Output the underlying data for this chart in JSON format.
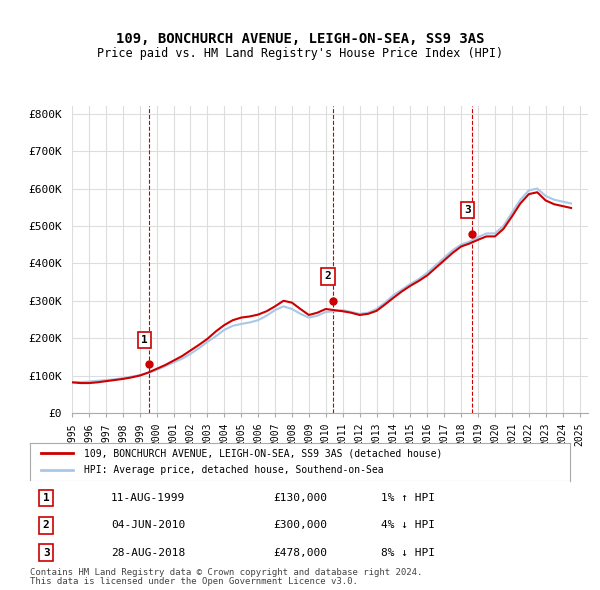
{
  "title": "109, BONCHURCH AVENUE, LEIGH-ON-SEA, SS9 3AS",
  "subtitle": "Price paid vs. HM Land Registry's House Price Index (HPI)",
  "legend_line1": "109, BONCHURCH AVENUE, LEIGH-ON-SEA, SS9 3AS (detached house)",
  "legend_line2": "HPI: Average price, detached house, Southend-on-Sea",
  "footer1": "Contains HM Land Registry data © Crown copyright and database right 2024.",
  "footer2": "This data is licensed under the Open Government Licence v3.0.",
  "sale_labels": [
    "1",
    "2",
    "3"
  ],
  "sale_dates": [
    "11-AUG-1999",
    "04-JUN-2010",
    "28-AUG-2018"
  ],
  "sale_prices": [
    "£130,000",
    "£300,000",
    "£478,000"
  ],
  "sale_hpi": [
    "1% ↑ HPI",
    "4% ↓ HPI",
    "8% ↓ HPI"
  ],
  "hpi_color": "#a8c8e8",
  "price_color": "#cc0000",
  "label_border_color": "#cc0000",
  "grid_color": "#dddddd",
  "background_color": "#ffffff",
  "ylim": [
    0,
    820000
  ],
  "yticks": [
    0,
    100000,
    200000,
    300000,
    400000,
    500000,
    600000,
    700000,
    800000
  ],
  "ytick_labels": [
    "£0",
    "£100K",
    "£200K",
    "£300K",
    "£400K",
    "£500K",
    "£600K",
    "£700K",
    "£800K"
  ],
  "hpi_x": [
    1995.0,
    1995.5,
    1996.0,
    1996.5,
    1997.0,
    1997.5,
    1998.0,
    1998.5,
    1999.0,
    1999.5,
    2000.0,
    2000.5,
    2001.0,
    2001.5,
    2002.0,
    2002.5,
    2003.0,
    2003.5,
    2004.0,
    2004.5,
    2005.0,
    2005.5,
    2006.0,
    2006.5,
    2007.0,
    2007.5,
    2008.0,
    2008.5,
    2009.0,
    2009.5,
    2010.0,
    2010.5,
    2011.0,
    2011.5,
    2012.0,
    2012.5,
    2013.0,
    2013.5,
    2014.0,
    2014.5,
    2015.0,
    2015.5,
    2016.0,
    2016.5,
    2017.0,
    2017.5,
    2018.0,
    2018.5,
    2019.0,
    2019.5,
    2020.0,
    2020.5,
    2021.0,
    2021.5,
    2022.0,
    2022.5,
    2023.0,
    2023.5,
    2024.0,
    2024.5
  ],
  "hpi_y": [
    82000,
    83000,
    84000,
    86000,
    88000,
    90000,
    93000,
    97000,
    101000,
    107000,
    115000,
    125000,
    135000,
    145000,
    158000,
    173000,
    190000,
    205000,
    222000,
    233000,
    238000,
    242000,
    248000,
    260000,
    275000,
    285000,
    278000,
    265000,
    255000,
    260000,
    270000,
    272000,
    275000,
    270000,
    265000,
    268000,
    278000,
    295000,
    315000,
    330000,
    345000,
    358000,
    375000,
    395000,
    415000,
    435000,
    450000,
    458000,
    470000,
    480000,
    480000,
    500000,
    535000,
    570000,
    595000,
    600000,
    580000,
    570000,
    565000,
    560000
  ],
  "price_x": [
    1995.0,
    1995.5,
    1996.0,
    1996.5,
    1997.0,
    1997.5,
    1998.0,
    1998.5,
    1999.0,
    1999.5,
    2000.0,
    2000.5,
    2001.0,
    2001.5,
    2002.0,
    2002.5,
    2003.0,
    2003.5,
    2004.0,
    2004.5,
    2005.0,
    2005.5,
    2006.0,
    2006.5,
    2007.0,
    2007.5,
    2008.0,
    2008.5,
    2009.0,
    2009.5,
    2010.0,
    2010.5,
    2011.0,
    2011.5,
    2012.0,
    2012.5,
    2013.0,
    2013.5,
    2014.0,
    2014.5,
    2015.0,
    2015.5,
    2016.0,
    2016.5,
    2017.0,
    2017.5,
    2018.0,
    2018.5,
    2019.0,
    2019.5,
    2020.0,
    2020.5,
    2021.0,
    2021.5,
    2022.0,
    2022.5,
    2023.0,
    2023.5,
    2024.0,
    2024.5
  ],
  "price_y": [
    82000,
    80000,
    80000,
    82000,
    85000,
    88000,
    91000,
    95000,
    100000,
    108000,
    118000,
    128000,
    140000,
    152000,
    167000,
    182000,
    198000,
    218000,
    235000,
    248000,
    255000,
    258000,
    263000,
    272000,
    285000,
    300000,
    295000,
    278000,
    262000,
    268000,
    278000,
    275000,
    272000,
    268000,
    262000,
    265000,
    273000,
    290000,
    308000,
    325000,
    340000,
    353000,
    368000,
    388000,
    408000,
    428000,
    445000,
    453000,
    463000,
    472000,
    472000,
    492000,
    525000,
    560000,
    585000,
    590000,
    568000,
    558000,
    553000,
    548000
  ],
  "sale_points_x": [
    1999.58,
    2010.42,
    2018.67
  ],
  "sale_points_y": [
    130000,
    300000,
    478000
  ],
  "xtick_years": [
    1995,
    1996,
    1997,
    1998,
    1999,
    2000,
    2001,
    2002,
    2003,
    2004,
    2005,
    2006,
    2007,
    2008,
    2009,
    2010,
    2011,
    2012,
    2013,
    2014,
    2015,
    2016,
    2017,
    2018,
    2019,
    2020,
    2021,
    2022,
    2023,
    2024,
    2025
  ],
  "vline_x": [
    1999.58,
    2010.42,
    2018.67
  ],
  "vline_color": "#cc0000"
}
